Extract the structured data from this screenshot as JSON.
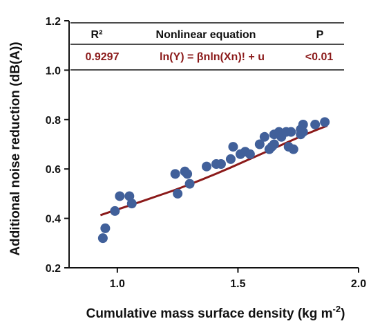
{
  "colors": {
    "points": "#41609a",
    "fit_line": "#8b1a1a",
    "table_values": "#8b1a1a",
    "axis": "#111111"
  },
  "table": {
    "headers": {
      "r2": "R²",
      "equation": "Nonlinear equation",
      "p": "P"
    },
    "values": {
      "r2": "0.9297",
      "equation": "ln(Y) = βnln(Xn)! + u",
      "p": "<0.01"
    }
  },
  "chart_data": {
    "type": "scatter",
    "title": "",
    "xlabel": "Cumulative mass surface density (kg m",
    "xlabel_sup": "-2",
    "xlabel_end": ")",
    "ylabel": "Additional noise reduction (dB(A))",
    "xlim": [
      0.8,
      2.0
    ],
    "ylim": [
      0.2,
      1.2
    ],
    "x_ticks": [
      1.0,
      1.5,
      2.0
    ],
    "x_tick_labels": [
      "1.0",
      "1.5",
      "2.0"
    ],
    "y_ticks": [
      0.2,
      0.4,
      0.6,
      0.8,
      1.0,
      1.2
    ],
    "y_tick_labels": [
      "0.2",
      "0.4",
      "0.6",
      "0.8",
      "1.0",
      "1.2"
    ],
    "grid": false,
    "points": [
      [
        0.94,
        0.32
      ],
      [
        0.95,
        0.36
      ],
      [
        0.99,
        0.43
      ],
      [
        1.01,
        0.49
      ],
      [
        1.05,
        0.49
      ],
      [
        1.06,
        0.46
      ],
      [
        1.24,
        0.58
      ],
      [
        1.25,
        0.5
      ],
      [
        1.28,
        0.59
      ],
      [
        1.29,
        0.58
      ],
      [
        1.3,
        0.54
      ],
      [
        1.37,
        0.61
      ],
      [
        1.41,
        0.62
      ],
      [
        1.43,
        0.62
      ],
      [
        1.47,
        0.64
      ],
      [
        1.48,
        0.69
      ],
      [
        1.51,
        0.66
      ],
      [
        1.53,
        0.67
      ],
      [
        1.55,
        0.66
      ],
      [
        1.59,
        0.7
      ],
      [
        1.61,
        0.73
      ],
      [
        1.63,
        0.68
      ],
      [
        1.64,
        0.69
      ],
      [
        1.65,
        0.7
      ],
      [
        1.65,
        0.74
      ],
      [
        1.67,
        0.75
      ],
      [
        1.68,
        0.73
      ],
      [
        1.7,
        0.75
      ],
      [
        1.71,
        0.69
      ],
      [
        1.72,
        0.75
      ],
      [
        1.73,
        0.68
      ],
      [
        1.76,
        0.74
      ],
      [
        1.76,
        0.76
      ],
      [
        1.77,
        0.78
      ],
      [
        1.77,
        0.75
      ],
      [
        1.82,
        0.78
      ],
      [
        1.86,
        0.79
      ]
    ],
    "fit_line": {
      "x": [
        0.93,
        0.99,
        1.05,
        1.11,
        1.17,
        1.23,
        1.29,
        1.35,
        1.41,
        1.47,
        1.53,
        1.59,
        1.65,
        1.71,
        1.77,
        1.83,
        1.87
      ],
      "y": [
        0.413,
        0.433,
        0.452,
        0.472,
        0.492,
        0.512,
        0.534,
        0.557,
        0.581,
        0.606,
        0.632,
        0.658,
        0.684,
        0.71,
        0.736,
        0.76,
        0.775
      ]
    }
  }
}
